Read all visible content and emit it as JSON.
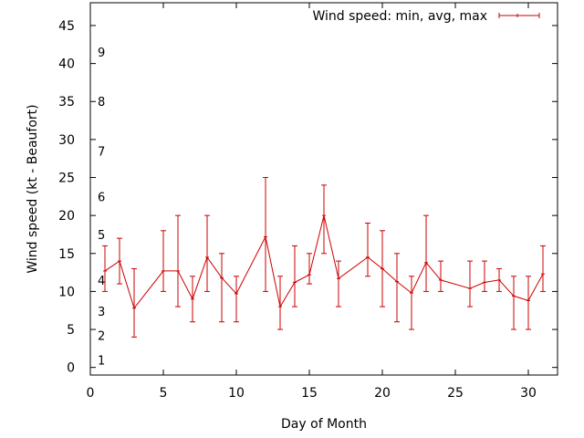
{
  "chart_data": {
    "type": "line",
    "xlabel": "Day of Month",
    "ylabel": "Wind speed (kt - Beaufort)",
    "xlim": [
      0,
      32
    ],
    "ylim": [
      -1,
      48
    ],
    "xticks": [
      0,
      5,
      10,
      15,
      20,
      25,
      30
    ],
    "yticks": [
      0,
      5,
      10,
      15,
      20,
      25,
      30,
      35,
      40,
      45
    ],
    "grid": false,
    "legend_position": "top-right",
    "beaufort_labels": [
      {
        "label": "1",
        "y": 1
      },
      {
        "label": "2",
        "y": 4.2
      },
      {
        "label": "3",
        "y": 7.4
      },
      {
        "label": "4",
        "y": 11.5
      },
      {
        "label": "5",
        "y": 17.5
      },
      {
        "label": "6",
        "y": 22.5
      },
      {
        "label": "7",
        "y": 28.5
      },
      {
        "label": "8",
        "y": 35
      },
      {
        "label": "9",
        "y": 41.5
      }
    ],
    "series": [
      {
        "name": "Wind speed: min, avg, max",
        "color": "#cc0000",
        "points": [
          {
            "x": 1,
            "avg": 12.7,
            "min": 10,
            "max": 16
          },
          {
            "x": 2,
            "avg": 14,
            "min": 11,
            "max": 17
          },
          {
            "x": 3,
            "avg": 7.8,
            "min": 4,
            "max": 13
          },
          {
            "x": 5,
            "avg": 12.7,
            "min": 10,
            "max": 18
          },
          {
            "x": 6,
            "avg": 12.7,
            "min": 8,
            "max": 20
          },
          {
            "x": 7,
            "avg": 9,
            "min": 6,
            "max": 12
          },
          {
            "x": 8,
            "avg": 14.5,
            "min": 10,
            "max": 20
          },
          {
            "x": 9,
            "avg": 11.8,
            "min": 6,
            "max": 15
          },
          {
            "x": 10,
            "avg": 9.7,
            "min": 6,
            "max": 12
          },
          {
            "x": 12,
            "avg": 17.2,
            "min": 10,
            "max": 25
          },
          {
            "x": 13,
            "avg": 8,
            "min": 5,
            "max": 12
          },
          {
            "x": 14,
            "avg": 11.2,
            "min": 8,
            "max": 16
          },
          {
            "x": 15,
            "avg": 12.2,
            "min": 11,
            "max": 15
          },
          {
            "x": 16,
            "avg": 20,
            "min": 15,
            "max": 24
          },
          {
            "x": 17,
            "avg": 11.7,
            "min": 8,
            "max": 14
          },
          {
            "x": 19,
            "avg": 14.5,
            "min": 12,
            "max": 19
          },
          {
            "x": 20,
            "avg": 13,
            "min": 8,
            "max": 18
          },
          {
            "x": 21,
            "avg": 11.3,
            "min": 6,
            "max": 15
          },
          {
            "x": 22,
            "avg": 9.8,
            "min": 5,
            "max": 12
          },
          {
            "x": 23,
            "avg": 13.8,
            "min": 10,
            "max": 20
          },
          {
            "x": 24,
            "avg": 11.5,
            "min": 10,
            "max": 14
          },
          {
            "x": 26,
            "avg": 10.4,
            "min": 8,
            "max": 14
          },
          {
            "x": 27,
            "avg": 11.2,
            "min": 10,
            "max": 14
          },
          {
            "x": 28,
            "avg": 11.5,
            "min": 10,
            "max": 13
          },
          {
            "x": 29,
            "avg": 9.4,
            "min": 5,
            "max": 12
          },
          {
            "x": 30,
            "avg": 8.8,
            "min": 5,
            "max": 12
          },
          {
            "x": 31,
            "avg": 12.3,
            "min": 10,
            "max": 16
          }
        ]
      }
    ]
  }
}
